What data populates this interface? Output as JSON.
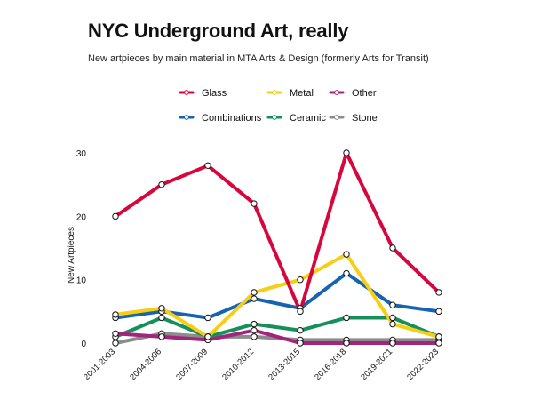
{
  "chart_data": {
    "type": "line",
    "title": "NYC Underground Art, really",
    "subtitle": "New artpieces by main material in MTA Arts & Design (formerly Arts for Transit)",
    "xlabel": "",
    "ylabel": "New Artpieces",
    "categories": [
      "2001-2003",
      "2004-2006",
      "2007-2009",
      "2010-2012",
      "2013-2015",
      "2016-2018",
      "2019-2021",
      "2022-2023"
    ],
    "ylim": [
      0,
      32
    ],
    "yticks": [
      0,
      10,
      20,
      30
    ],
    "grid": false,
    "legend_position": "top",
    "series": [
      {
        "name": "Glass",
        "color": "#d7063c",
        "values": [
          20,
          25,
          28,
          22,
          5,
          30,
          15,
          8
        ]
      },
      {
        "name": "Metal",
        "color": "#f7cd16",
        "values": [
          4.5,
          5.5,
          1,
          8,
          10,
          14,
          3,
          1
        ]
      },
      {
        "name": "Other",
        "color": "#a1267b",
        "values": [
          1.5,
          1,
          0.5,
          2,
          0,
          0,
          0,
          0
        ]
      },
      {
        "name": "Combinations",
        "color": "#1663b2",
        "values": [
          4,
          5,
          4,
          7,
          5.5,
          11,
          6,
          5
        ]
      },
      {
        "name": "Ceramic",
        "color": "#16905a",
        "values": [
          1,
          4,
          1,
          3,
          2,
          4,
          4,
          1
        ]
      },
      {
        "name": "Stone",
        "color": "#8c8c8c",
        "values": [
          0,
          1.5,
          1,
          1,
          0.5,
          0.5,
          0.5,
          0.5
        ]
      }
    ]
  }
}
